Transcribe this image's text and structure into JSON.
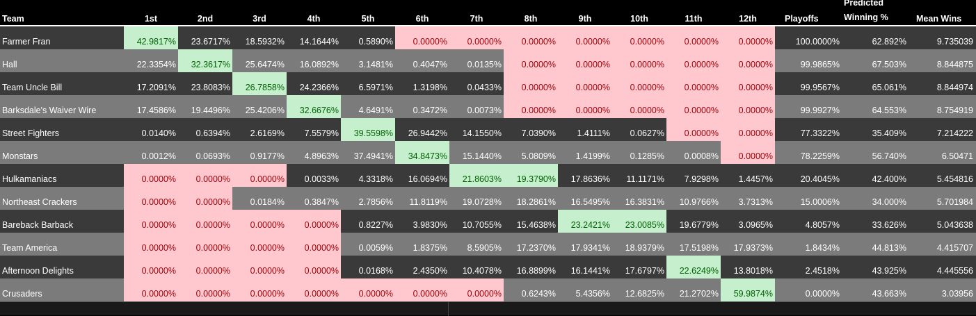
{
  "colors": {
    "pink_bg": "#ffc7ce",
    "pink_text": "#9c0006",
    "green_bg": "#c6efce",
    "green_text": "#006100",
    "dark_row": "#3a3a3a",
    "light_row": "#7b7b7b"
  },
  "headers": {
    "team": "Team",
    "places": [
      "1st",
      "2nd",
      "3rd",
      "4th",
      "5th",
      "6th",
      "7th",
      "8th",
      "9th",
      "10th",
      "11th",
      "12th"
    ],
    "playoffs": "Playoffs",
    "winning_line1": "Predicted",
    "winning_line2": "Winning %",
    "mean_wins": "Mean Wins"
  },
  "rows": [
    {
      "team": "Farmer Fran",
      "places": [
        "42.9817%",
        "23.6717%",
        "18.5932%",
        "14.1644%",
        "0.5890%",
        "0.0000%",
        "0.0000%",
        "0.0000%",
        "0.0000%",
        "0.0000%",
        "0.0000%",
        "0.0000%"
      ],
      "playoffs": "100.0000%",
      "winning": "62.892%",
      "mean": "9.735039",
      "hl": [
        "g",
        "n",
        "n",
        "n",
        "n",
        "p",
        "p",
        "p",
        "p",
        "p",
        "p",
        "p"
      ]
    },
    {
      "team": "Hall",
      "places": [
        "22.3354%",
        "32.3617%",
        "25.6474%",
        "16.0892%",
        "3.1481%",
        "0.4047%",
        "0.0135%",
        "0.0000%",
        "0.0000%",
        "0.0000%",
        "0.0000%",
        "0.0000%"
      ],
      "playoffs": "99.9865%",
      "winning": "67.503%",
      "mean": "8.844875",
      "hl": [
        "n",
        "g",
        "n",
        "n",
        "n",
        "n",
        "n",
        "p",
        "p",
        "p",
        "p",
        "p"
      ]
    },
    {
      "team": "Team Uncle Bill",
      "places": [
        "17.2091%",
        "23.8083%",
        "26.7858%",
        "24.2366%",
        "6.5971%",
        "1.3198%",
        "0.0433%",
        "0.0000%",
        "0.0000%",
        "0.0000%",
        "0.0000%",
        "0.0000%"
      ],
      "playoffs": "99.9567%",
      "winning": "65.061%",
      "mean": "8.844974",
      "hl": [
        "n",
        "n",
        "g",
        "n",
        "n",
        "n",
        "n",
        "p",
        "p",
        "p",
        "p",
        "p"
      ]
    },
    {
      "team": "Barksdale's Waiver Wire",
      "places": [
        "17.4586%",
        "19.4496%",
        "25.4206%",
        "32.6676%",
        "4.6491%",
        "0.3472%",
        "0.0073%",
        "0.0000%",
        "0.0000%",
        "0.0000%",
        "0.0000%",
        "0.0000%"
      ],
      "playoffs": "99.9927%",
      "winning": "64.553%",
      "mean": "8.754919",
      "hl": [
        "n",
        "n",
        "n",
        "g",
        "n",
        "n",
        "n",
        "p",
        "p",
        "p",
        "p",
        "p"
      ]
    },
    {
      "team": "Street Fighters",
      "places": [
        "0.0140%",
        "0.6394%",
        "2.6169%",
        "7.5579%",
        "39.5598%",
        "26.9442%",
        "14.1550%",
        "7.0390%",
        "1.4111%",
        "0.0627%",
        "0.0000%",
        "0.0000%"
      ],
      "playoffs": "77.3322%",
      "winning": "35.409%",
      "mean": "7.214222",
      "hl": [
        "n",
        "n",
        "n",
        "n",
        "g",
        "n",
        "n",
        "n",
        "n",
        "n",
        "p",
        "p"
      ]
    },
    {
      "team": "Monstars",
      "places": [
        "0.0012%",
        "0.0693%",
        "0.9177%",
        "4.8963%",
        "37.4941%",
        "34.8473%",
        "15.1440%",
        "5.0809%",
        "1.4199%",
        "0.1285%",
        "0.0008%",
        "0.0000%"
      ],
      "playoffs": "78.2259%",
      "winning": "56.740%",
      "mean": "6.50471",
      "hl": [
        "n",
        "n",
        "n",
        "n",
        "n",
        "g",
        "n",
        "n",
        "n",
        "n",
        "n",
        "p"
      ]
    },
    {
      "team": "Hulkamaniacs",
      "places": [
        "0.0000%",
        "0.0000%",
        "0.0000%",
        "0.0033%",
        "4.3318%",
        "16.0694%",
        "21.8603%",
        "19.3790%",
        "17.8636%",
        "11.1171%",
        "7.9298%",
        "1.4457%"
      ],
      "playoffs": "20.4045%",
      "winning": "42.400%",
      "mean": "5.454816",
      "hl": [
        "p",
        "p",
        "p",
        "n",
        "n",
        "n",
        "g",
        "g",
        "n",
        "n",
        "n",
        "n"
      ]
    },
    {
      "team": "Northeast Crackers",
      "places": [
        "0.0000%",
        "0.0000%",
        "0.0184%",
        "0.3847%",
        "2.7856%",
        "11.8119%",
        "19.0728%",
        "18.2861%",
        "16.5495%",
        "16.3831%",
        "10.9766%",
        "3.7313%"
      ],
      "playoffs": "15.0006%",
      "winning": "34.000%",
      "mean": "5.701984",
      "hl": [
        "p",
        "p",
        "n",
        "n",
        "n",
        "n",
        "n",
        "n",
        "n",
        "n",
        "n",
        "n"
      ]
    },
    {
      "team": "Bareback Barback",
      "places": [
        "0.0000%",
        "0.0000%",
        "0.0000%",
        "0.0000%",
        "0.8227%",
        "3.9830%",
        "10.7055%",
        "15.4638%",
        "23.2421%",
        "23.0085%",
        "19.6779%",
        "3.0965%"
      ],
      "playoffs": "4.8057%",
      "winning": "33.626%",
      "mean": "5.043638",
      "hl": [
        "p",
        "p",
        "p",
        "p",
        "n",
        "n",
        "n",
        "n",
        "g",
        "g",
        "n",
        "n"
      ]
    },
    {
      "team": "Team America",
      "places": [
        "0.0000%",
        "0.0000%",
        "0.0000%",
        "0.0000%",
        "0.0059%",
        "1.8375%",
        "8.5905%",
        "17.2370%",
        "17.9341%",
        "18.9379%",
        "17.5198%",
        "17.9373%"
      ],
      "playoffs": "1.8434%",
      "winning": "44.813%",
      "mean": "4.415707",
      "hl": [
        "p",
        "p",
        "p",
        "p",
        "n",
        "n",
        "n",
        "n",
        "n",
        "n",
        "n",
        "n"
      ]
    },
    {
      "team": "Afternoon Delights",
      "places": [
        "0.0000%",
        "0.0000%",
        "0.0000%",
        "0.0000%",
        "0.0168%",
        "2.4350%",
        "10.4078%",
        "16.8899%",
        "16.1441%",
        "17.6797%",
        "22.6249%",
        "13.8018%"
      ],
      "playoffs": "2.4518%",
      "winning": "43.925%",
      "mean": "4.445556",
      "hl": [
        "p",
        "p",
        "p",
        "p",
        "n",
        "n",
        "n",
        "n",
        "n",
        "n",
        "g",
        "n"
      ]
    },
    {
      "team": "Crusaders",
      "places": [
        "0.0000%",
        "0.0000%",
        "0.0000%",
        "0.0000%",
        "0.0000%",
        "0.0000%",
        "0.0000%",
        "0.6243%",
        "5.4356%",
        "12.6825%",
        "21.2702%",
        "59.9874%"
      ],
      "playoffs": "0.0000%",
      "winning": "43.663%",
      "mean": "3.03956",
      "hl": [
        "p",
        "p",
        "p",
        "p",
        "p",
        "p",
        "p",
        "n",
        "n",
        "n",
        "n",
        "g"
      ]
    }
  ]
}
